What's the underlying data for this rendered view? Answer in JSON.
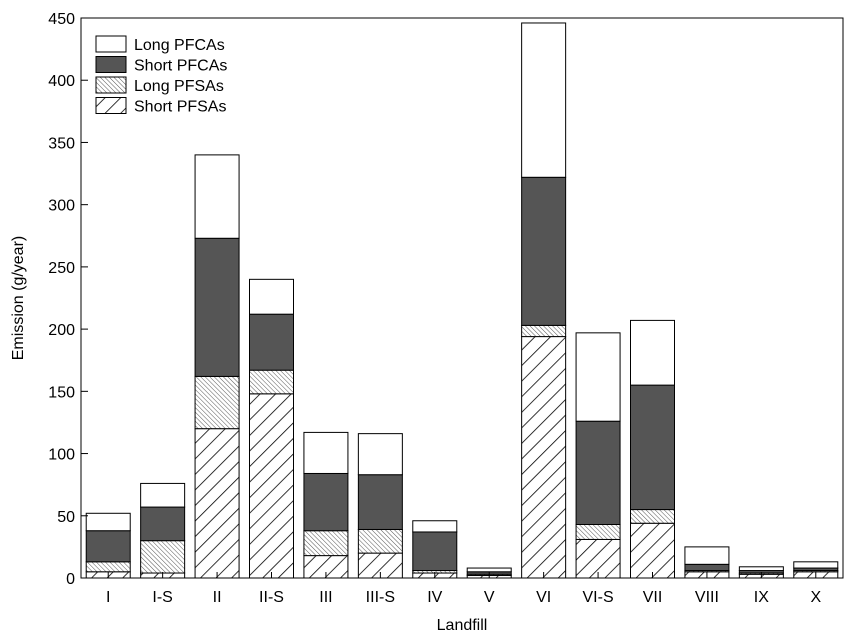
{
  "chart_data": {
    "type": "bar",
    "stacked": true,
    "xlabel": "Landfill",
    "ylabel": "Emission (g/year)",
    "ylim": [
      0,
      450
    ],
    "yticks": [
      0,
      50,
      100,
      150,
      200,
      250,
      300,
      350,
      400,
      450
    ],
    "grid": false,
    "legend_position": "top-left",
    "categories": [
      "I",
      "I-S",
      "II",
      "II-S",
      "III",
      "III-S",
      "IV",
      "V",
      "VI",
      "VI-S",
      "VII",
      "VIII",
      "IX",
      "X"
    ],
    "series": [
      {
        "name": "Short PFSAs",
        "pattern": "diagonal-hatch",
        "values": [
          5,
          4,
          120,
          148,
          18,
          20,
          4,
          2,
          194,
          31,
          44,
          5,
          3,
          5
        ]
      },
      {
        "name": "Long PFSAs",
        "pattern": "fine-hatch",
        "values": [
          8,
          26,
          42,
          19,
          20,
          19,
          2,
          1,
          9,
          12,
          11,
          1,
          1,
          1
        ]
      },
      {
        "name": "Short PFCAs",
        "color": "#555555",
        "values": [
          25,
          27,
          111,
          45,
          46,
          44,
          31,
          2,
          119,
          83,
          100,
          5,
          2,
          2
        ]
      },
      {
        "name": "Long PFCAs",
        "color": "#ffffff",
        "values": [
          14,
          19,
          67,
          28,
          33,
          33,
          9,
          3,
          124,
          71,
          52,
          14,
          3,
          5
        ]
      }
    ],
    "legend_order": [
      "Long PFCAs",
      "Short PFCAs",
      "Long PFSAs",
      "Short PFSAs"
    ]
  }
}
